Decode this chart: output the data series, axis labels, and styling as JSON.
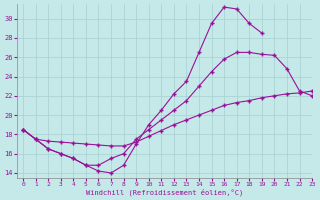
{
  "bg_color": "#c5e8e8",
  "line_color": "#991199",
  "grid_color": "#a8d0d0",
  "xlabel": "Windchill (Refroidissement éolien,°C)",
  "xlim": [
    -0.5,
    23
  ],
  "ylim": [
    13.5,
    31.5
  ],
  "xticks": [
    0,
    1,
    2,
    3,
    4,
    5,
    6,
    7,
    8,
    9,
    10,
    11,
    12,
    13,
    14,
    15,
    16,
    17,
    18,
    19,
    20,
    21,
    22,
    23
  ],
  "yticks": [
    14,
    16,
    18,
    20,
    22,
    24,
    26,
    28,
    30
  ],
  "curve1_x": [
    0,
    1,
    2,
    3,
    4,
    5,
    6,
    7,
    8,
    9,
    10,
    11,
    12,
    13,
    14,
    15,
    16,
    17,
    18,
    19
  ],
  "curve1_y": [
    18.5,
    17.5,
    16.5,
    16.0,
    15.5,
    14.8,
    14.2,
    14.0,
    14.8,
    17.0,
    19.0,
    20.5,
    22.2,
    23.5,
    26.5,
    29.5,
    31.2,
    31.0,
    29.5,
    28.5
  ],
  "curve2_x": [
    0,
    1,
    2,
    3,
    4,
    5,
    6,
    7,
    8,
    9,
    10,
    11,
    12,
    13,
    14,
    15,
    16,
    17,
    18,
    19,
    20,
    21,
    22,
    23
  ],
  "curve2_y": [
    18.5,
    17.5,
    16.5,
    16.0,
    15.5,
    14.8,
    14.8,
    15.5,
    16.0,
    17.5,
    18.5,
    19.5,
    20.5,
    21.5,
    23.0,
    24.5,
    25.8,
    26.5,
    26.5,
    26.3,
    26.2,
    24.8,
    22.5,
    22.0
  ],
  "curve3_x": [
    0,
    1,
    2,
    3,
    4,
    5,
    6,
    7,
    8,
    9,
    10,
    11,
    12,
    13,
    14,
    15,
    16,
    17,
    18,
    19,
    20,
    21,
    22,
    23
  ],
  "curve3_y": [
    18.5,
    17.5,
    17.3,
    17.2,
    17.1,
    17.0,
    16.9,
    16.8,
    16.8,
    17.2,
    17.8,
    18.4,
    19.0,
    19.5,
    20.0,
    20.5,
    21.0,
    21.3,
    21.5,
    21.8,
    22.0,
    22.2,
    22.3,
    22.5
  ]
}
